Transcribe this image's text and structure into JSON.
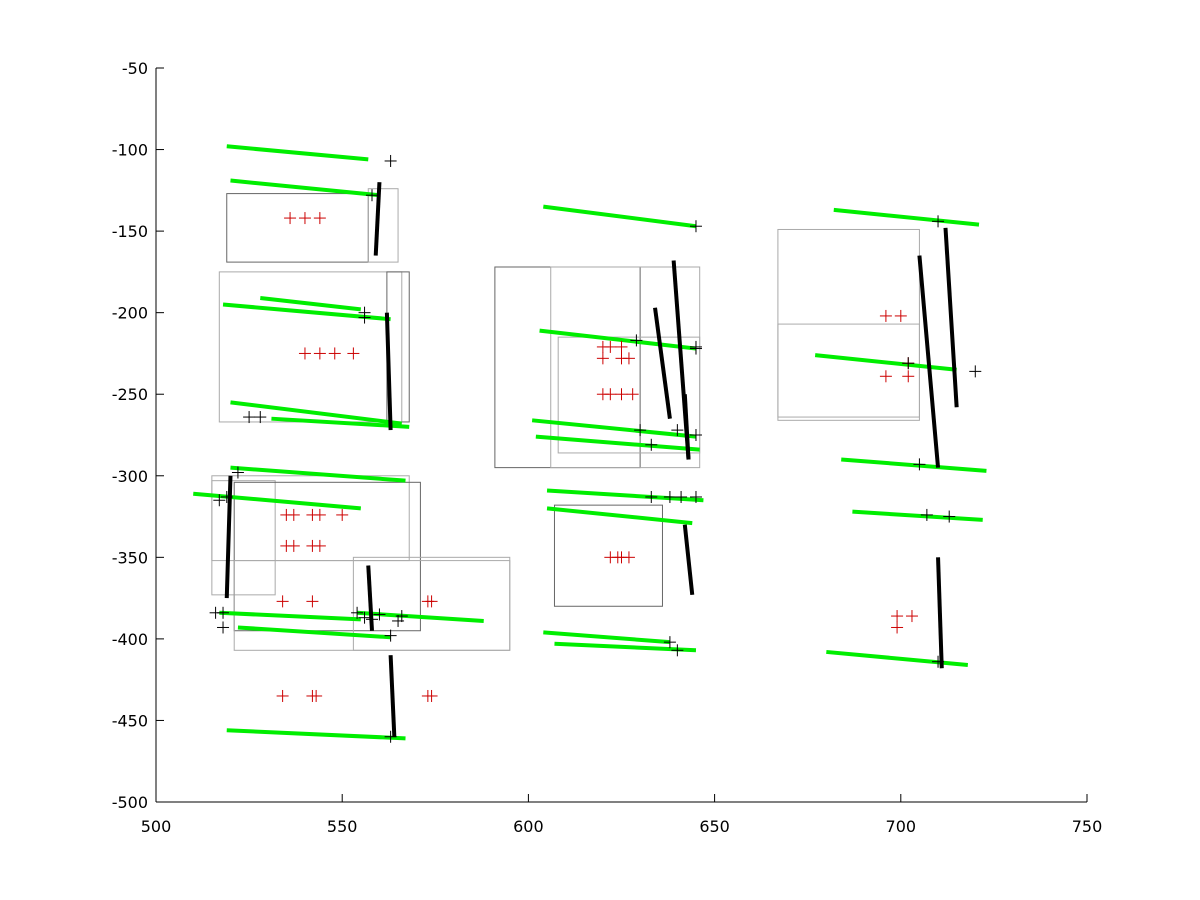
{
  "chart_data": {
    "type": "scatter",
    "title": "",
    "xlabel": "",
    "ylabel": "",
    "xlim": [
      500,
      750
    ],
    "ylim": [
      -500,
      -50
    ],
    "y_reversed": true,
    "xticks": [
      500,
      550,
      600,
      650,
      700,
      750
    ],
    "yticks": [
      -50,
      -100,
      -150,
      -200,
      -250,
      -300,
      -350,
      -400,
      -450,
      -500
    ],
    "grid": false,
    "legend": "none",
    "colors": {
      "green_segments": "#00ee00",
      "black_segments": "#000000",
      "red_markers": "#cc0000",
      "black_markers": "#000000",
      "rectangles": "#888888",
      "axis": "#000000"
    },
    "green_segments": [
      [
        519,
        -98,
        557,
        -106
      ],
      [
        520,
        -119,
        560,
        -128
      ],
      [
        528,
        -191,
        555,
        -198
      ],
      [
        518,
        -195,
        563,
        -204
      ],
      [
        520,
        -255,
        566,
        -268
      ],
      [
        531,
        -265,
        568,
        -270
      ],
      [
        520,
        -295,
        567,
        -303
      ],
      [
        510,
        -311,
        555,
        -320
      ],
      [
        517,
        -384,
        555,
        -388
      ],
      [
        522,
        -393,
        563,
        -399
      ],
      [
        554,
        -384,
        588,
        -389
      ],
      [
        519,
        -456,
        567,
        -461
      ],
      [
        604,
        -135,
        645,
        -147
      ],
      [
        603,
        -211,
        645,
        -222
      ],
      [
        601,
        -266,
        645,
        -276
      ],
      [
        602,
        -276,
        646,
        -284
      ],
      [
        605,
        -309,
        647,
        -315
      ],
      [
        605,
        -320,
        644,
        -329
      ],
      [
        604,
        -396,
        638,
        -402
      ],
      [
        607,
        -403,
        645,
        -407
      ],
      [
        682,
        -137,
        721,
        -146
      ],
      [
        677,
        -226,
        715,
        -235
      ],
      [
        684,
        -290,
        723,
        -297
      ],
      [
        687,
        -322,
        722,
        -327
      ],
      [
        680,
        -408,
        718,
        -416
      ]
    ],
    "black_segments": [
      [
        560,
        -120,
        559,
        -165
      ],
      [
        562,
        -200,
        563,
        -272
      ],
      [
        520,
        -300,
        519,
        -375
      ],
      [
        557,
        -355,
        558,
        -395
      ],
      [
        563,
        -410,
        564,
        -460
      ],
      [
        634,
        -197,
        638,
        -265
      ],
      [
        639,
        -168,
        643,
        -290
      ],
      [
        642,
        -250,
        643,
        -290
      ],
      [
        642,
        -330,
        644,
        -373
      ],
      [
        705,
        -165,
        710,
        -295
      ],
      [
        712,
        -148,
        715,
        -258
      ],
      [
        710,
        -350,
        711,
        -418
      ]
    ],
    "red_markers": [
      [
        536,
        -142
      ],
      [
        540,
        -142
      ],
      [
        544,
        -142
      ],
      [
        540,
        -225
      ],
      [
        544,
        -225
      ],
      [
        548,
        -225
      ],
      [
        553,
        -225
      ],
      [
        535,
        -324
      ],
      [
        537,
        -324
      ],
      [
        542,
        -324
      ],
      [
        544,
        -324
      ],
      [
        550,
        -324
      ],
      [
        535,
        -343
      ],
      [
        537,
        -343
      ],
      [
        542,
        -343
      ],
      [
        544,
        -343
      ],
      [
        534,
        -377
      ],
      [
        542,
        -377
      ],
      [
        573,
        -377
      ],
      [
        574,
        -377
      ],
      [
        534,
        -435
      ],
      [
        542,
        -435
      ],
      [
        543,
        -435
      ],
      [
        573,
        -435
      ],
      [
        574,
        -435
      ],
      [
        620,
        -221
      ],
      [
        622,
        -221
      ],
      [
        625,
        -221
      ],
      [
        620,
        -228
      ],
      [
        625,
        -228
      ],
      [
        627,
        -228
      ],
      [
        620,
        -250
      ],
      [
        622,
        -250
      ],
      [
        625,
        -250
      ],
      [
        628,
        -250
      ],
      [
        622,
        -350
      ],
      [
        624,
        -350
      ],
      [
        625,
        -350
      ],
      [
        627,
        -350
      ],
      [
        696,
        -202
      ],
      [
        700,
        -202
      ],
      [
        696,
        -239
      ],
      [
        702,
        -239
      ],
      [
        702,
        -231
      ],
      [
        699,
        -386
      ],
      [
        703,
        -386
      ],
      [
        699,
        -393
      ]
    ],
    "black_markers": [
      [
        563,
        -107
      ],
      [
        558,
        -128
      ],
      [
        556,
        -200
      ],
      [
        556,
        -203
      ],
      [
        525,
        -264
      ],
      [
        528,
        -264
      ],
      [
        522,
        -298
      ],
      [
        519,
        -313
      ],
      [
        517,
        -315
      ],
      [
        516,
        -384
      ],
      [
        518,
        -384
      ],
      [
        518,
        -393
      ],
      [
        554,
        -384
      ],
      [
        556,
        -387
      ],
      [
        558,
        -388
      ],
      [
        560,
        -385
      ],
      [
        565,
        -389
      ],
      [
        566,
        -386
      ],
      [
        563,
        -398
      ],
      [
        563,
        -460
      ],
      [
        645,
        -147
      ],
      [
        629,
        -217
      ],
      [
        645,
        -221
      ],
      [
        645,
        -222
      ],
      [
        630,
        -272
      ],
      [
        640,
        -272
      ],
      [
        645,
        -275
      ],
      [
        633,
        -281
      ],
      [
        633,
        -313
      ],
      [
        638,
        -313
      ],
      [
        641,
        -313
      ],
      [
        645,
        -313
      ],
      [
        638,
        -402
      ],
      [
        640,
        -407
      ],
      [
        710,
        -144
      ],
      [
        720,
        -236
      ],
      [
        702,
        -231
      ],
      [
        705,
        -293
      ],
      [
        707,
        -324
      ],
      [
        713,
        -325
      ],
      [
        710,
        -414
      ]
    ],
    "rectangles": [
      [
        519,
        -127,
        557,
        -169
      ],
      [
        557,
        -124,
        565,
        -169
      ],
      [
        517,
        -175,
        566,
        -267
      ],
      [
        562,
        -175,
        568,
        -267
      ],
      [
        515,
        -300,
        568,
        -352
      ],
      [
        515,
        -303,
        532,
        -373
      ],
      [
        521,
        -304,
        571,
        -395
      ],
      [
        521,
        -352,
        595,
        -407
      ],
      [
        553,
        -350,
        595,
        -407
      ],
      [
        591,
        -172,
        630,
        -295
      ],
      [
        606,
        -172,
        646,
        -295
      ],
      [
        608,
        -215,
        646,
        -286
      ],
      [
        607,
        -318,
        636,
        -380
      ],
      [
        667,
        -149,
        705,
        -264
      ],
      [
        667,
        -207,
        705,
        -266
      ]
    ]
  }
}
